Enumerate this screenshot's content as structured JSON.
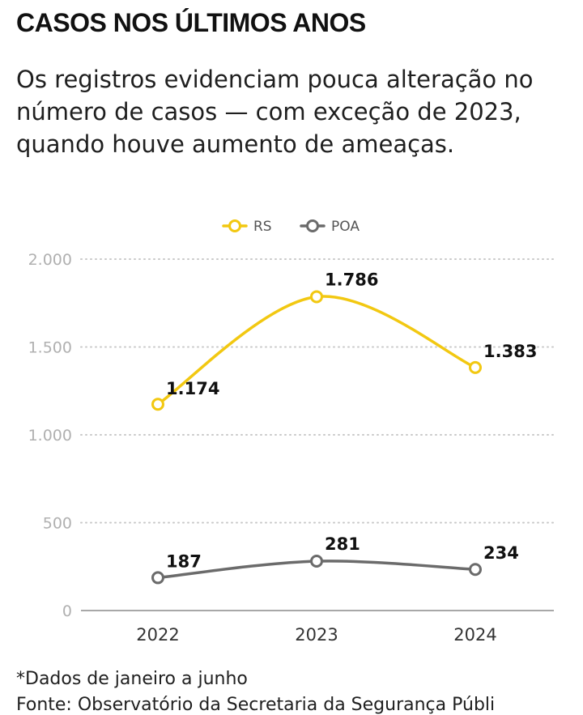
{
  "title": "CASOS NOS ÚLTIMOS ANOS",
  "subtitle": "Os registros evidenciam pouca alteração no número de casos — com exceção de 2023, quando houve aumento de ameaças.",
  "footnote": "*Dados de janeiro a junho",
  "source": "Fonte: Observatório da Secretaria da Segurança Públi",
  "colors": {
    "rs": "#f2c811",
    "poa": "#6b6b6b",
    "grid": "#c8c8c8",
    "axis_text": "#b0b0b0"
  },
  "chart_data": {
    "type": "line",
    "x": [
      "2022",
      "2023",
      "2024"
    ],
    "ylim": [
      0,
      2000
    ],
    "yticks": [
      0,
      500,
      1000,
      1500,
      2000
    ],
    "ytick_labels": [
      "0",
      "500",
      "1.000",
      "1.500",
      "2.000"
    ],
    "grid": true,
    "legend": "top-center",
    "series": [
      {
        "name": "RS",
        "values": [
          1174,
          1786,
          1383
        ],
        "labels": [
          "1.174",
          "1.786",
          "1.383"
        ],
        "color": "#f2c811"
      },
      {
        "name": "POA",
        "values": [
          187,
          281,
          234
        ],
        "labels": [
          "187",
          "281",
          "234"
        ],
        "color": "#6b6b6b"
      }
    ]
  }
}
